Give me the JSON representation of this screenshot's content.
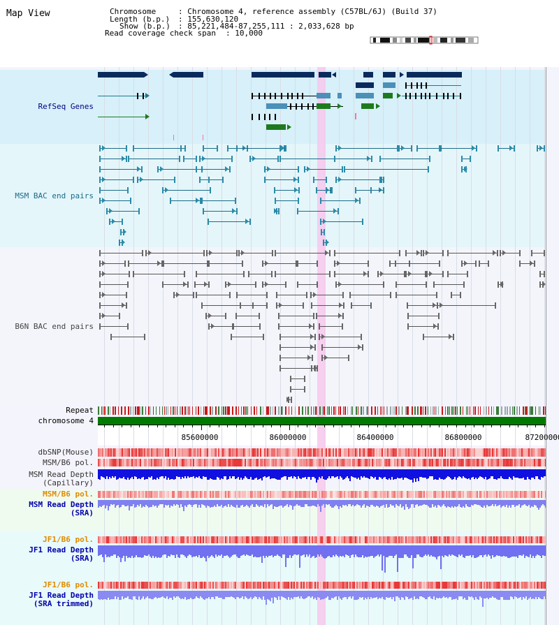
{
  "app": {
    "title": "Map View"
  },
  "header": {
    "chromosome_key": "Chromosome",
    "chromosome_value": ": Chromosome 4, reference assembly (C57BL/6J) (Build 37)",
    "length_key": "Length (b.p.)",
    "length_value": ": 155,630,120",
    "show_key": "Show (b.p.)",
    "show_value": ": 85,221,484-87,255,111 : 2,033,628 bp",
    "coverage_key": "Read coverage check span",
    "coverage_value": ": 10,000"
  },
  "tracks": {
    "refseq": "RefSeq Genes",
    "msm_bac": "MSM BAC end pairs",
    "b6n_bac": "B6N BAC end pairs",
    "repeat": "Repeat",
    "chromosome": "chromosome 4",
    "dbsnp": "dbSNP(Mouse)",
    "msm_b6_pol": "MSM/B6 pol.",
    "msm_depth_cap_1": "MSM Read Depth",
    "msm_depth_cap_2": "(Capillary)",
    "msm_b6_pol_2": "MSM/B6 pol.",
    "msm_depth_sra_1": "MSM Read Depth",
    "msm_depth_sra_2": "(SRA)",
    "jf1_b6_pol": "JF1/B6 pol.",
    "jf1_depth_sra_1": "JF1 Read Depth",
    "jf1_depth_sra_2": "(SRA)",
    "jf1_b6_pol_2": "JF1/B6 pol.",
    "jf1_depth_trim_1": "JF1 Read Depth",
    "jf1_depth_trim_2": "(SRA trimmed)"
  },
  "ruler": {
    "ticks": [
      "85600000",
      "86000000",
      "86400000",
      "86800000",
      "87200000"
    ]
  },
  "colors": {
    "title_label": "#000000",
    "refseq_label": "#000080",
    "bac_label": "#1a6b8a",
    "b6n_label": "#444444",
    "jf1_pol_label": "#e08a00",
    "depth_label": "#0000aa",
    "refseq_bg": "#d7f0fa",
    "msm_bg": "#e6f7fb",
    "b6n_bg": "#f4f6fb",
    "highlight": "#f7c8ec",
    "chromosome_bar": "#007a00"
  }
}
